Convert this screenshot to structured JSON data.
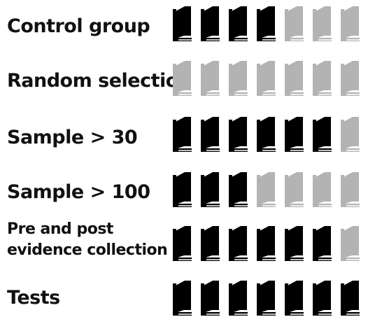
{
  "chart_data": {
    "type": "pictograph",
    "icon": "book-icon",
    "icons_per_row": 7,
    "colors": {
      "filled": "#000000",
      "empty": "#b3b3b3"
    },
    "rows": [
      {
        "label": "Control group",
        "filled": 4
      },
      {
        "label": "Random selection",
        "filled": 0
      },
      {
        "label": "Sample > 30",
        "filled": 6
      },
      {
        "label": "Sample > 100",
        "filled": 3
      },
      {
        "label": "Pre and post\nevidence collection",
        "filled": 6
      },
      {
        "label": "Tests",
        "filled": 7
      }
    ]
  }
}
